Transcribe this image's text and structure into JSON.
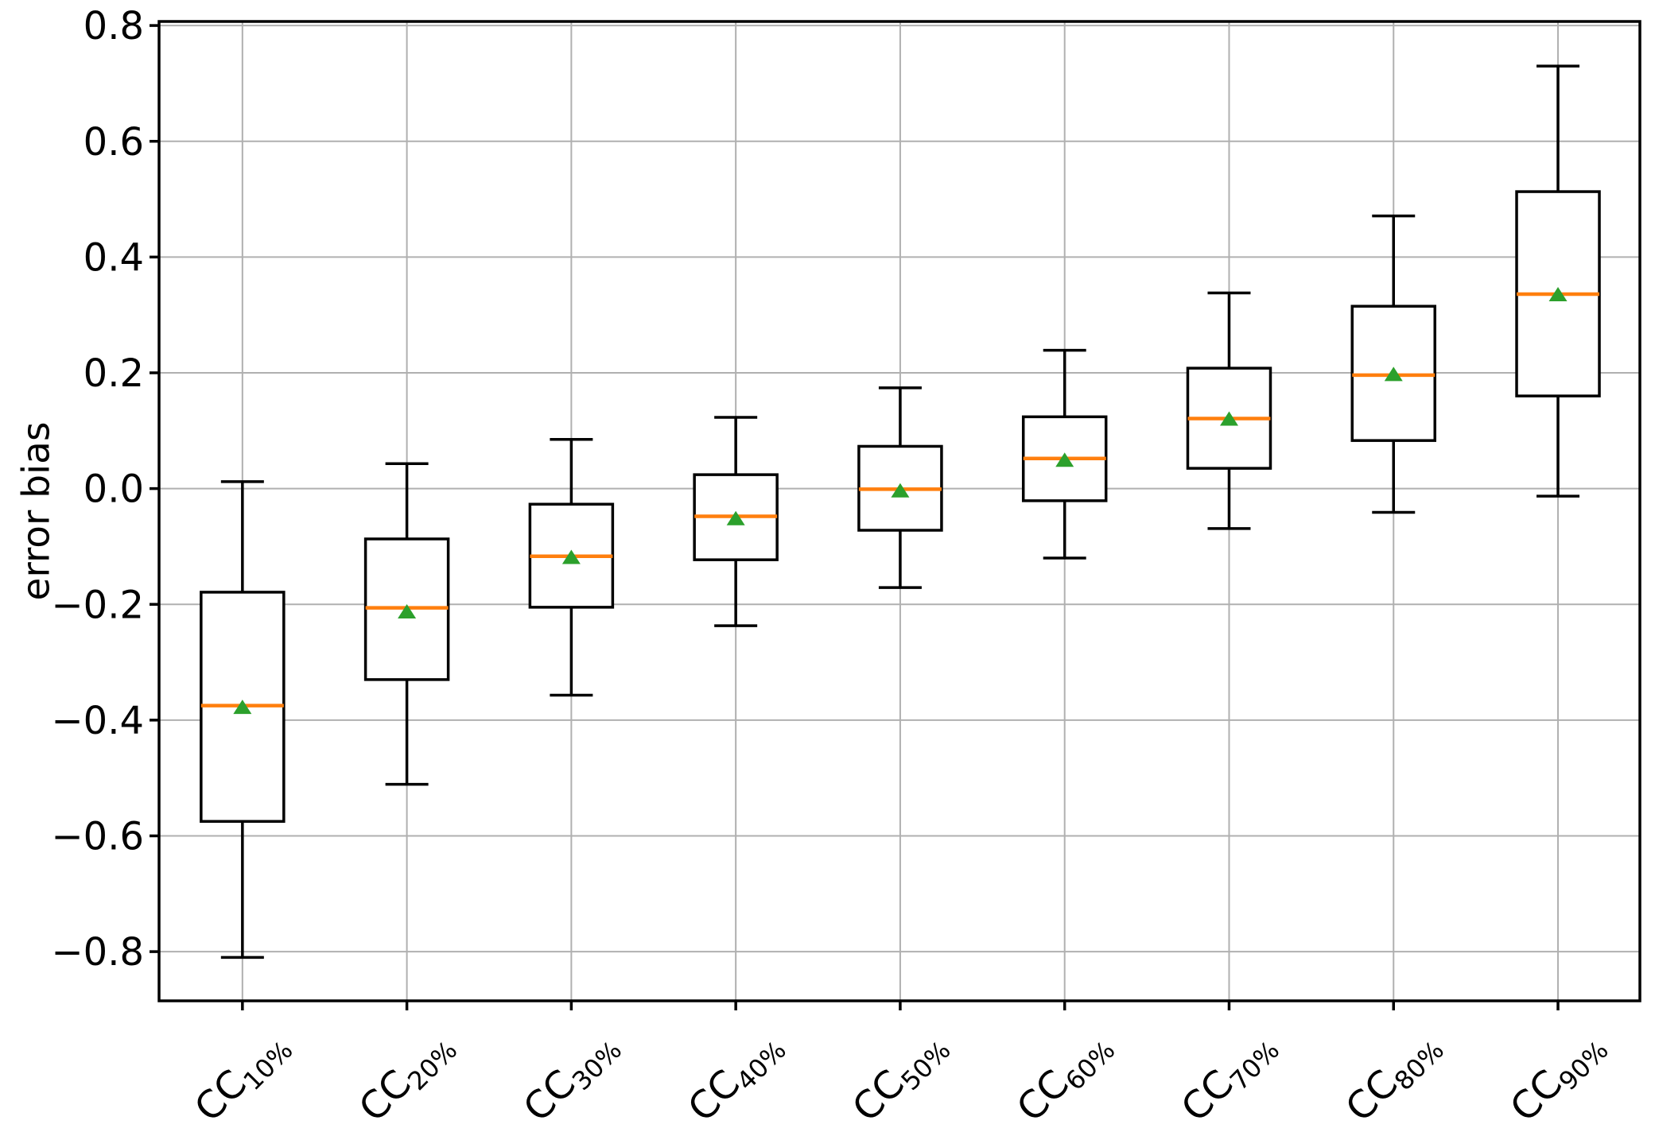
{
  "chart_data": {
    "type": "boxplot",
    "title": "",
    "ylabel": "error bias",
    "xlabel": "",
    "grid": true,
    "legend": false,
    "ylim": [
      -0.885,
      0.807
    ],
    "yticks": [
      0.8,
      0.6,
      0.4,
      0.2,
      0.0,
      -0.2,
      -0.4,
      -0.6,
      -0.8
    ],
    "categories": [
      {
        "base": "CC",
        "subscript": "10%"
      },
      {
        "base": "CC",
        "subscript": "20%"
      },
      {
        "base": "CC",
        "subscript": "30%"
      },
      {
        "base": "CC",
        "subscript": "40%"
      },
      {
        "base": "CC",
        "subscript": "50%"
      },
      {
        "base": "CC",
        "subscript": "60%"
      },
      {
        "base": "CC",
        "subscript": "70%"
      },
      {
        "base": "CC",
        "subscript": "80%"
      },
      {
        "base": "CC",
        "subscript": "90%"
      }
    ],
    "boxes": [
      {
        "label": "CC10%",
        "whislo": -0.81,
        "q1": -0.575,
        "med": -0.375,
        "q3": -0.179,
        "whishi": 0.012,
        "mean": -0.377
      },
      {
        "label": "CC20%",
        "whislo": -0.511,
        "q1": -0.33,
        "med": -0.206,
        "q3": -0.087,
        "whishi": 0.043,
        "mean": -0.212
      },
      {
        "label": "CC30%",
        "whislo": -0.357,
        "q1": -0.205,
        "med": -0.117,
        "q3": -0.027,
        "whishi": 0.085,
        "mean": -0.118
      },
      {
        "label": "CC40%",
        "whislo": -0.237,
        "q1": -0.123,
        "med": -0.048,
        "q3": 0.024,
        "whishi": 0.123,
        "mean": -0.051
      },
      {
        "label": "CC50%",
        "whislo": -0.171,
        "q1": -0.072,
        "med": -0.001,
        "q3": 0.073,
        "whishi": 0.174,
        "mean": -0.003
      },
      {
        "label": "CC60%",
        "whislo": -0.12,
        "q1": -0.021,
        "med": 0.052,
        "q3": 0.124,
        "whishi": 0.239,
        "mean": 0.05
      },
      {
        "label": "CC70%",
        "whislo": -0.069,
        "q1": 0.035,
        "med": 0.121,
        "q3": 0.208,
        "whishi": 0.338,
        "mean": 0.121
      },
      {
        "label": "CC80%",
        "whislo": -0.041,
        "q1": 0.083,
        "med": 0.196,
        "q3": 0.315,
        "whishi": 0.471,
        "mean": 0.198
      },
      {
        "label": "CC90%",
        "whislo": -0.013,
        "q1": 0.16,
        "med": 0.336,
        "q3": 0.513,
        "whishi": 0.73,
        "mean": 0.336
      }
    ],
    "mean_marker": "triangle-up",
    "colors": {
      "background": "#ffffff",
      "box_edge": "#000000",
      "median": "#ff7f0e",
      "mean_marker": "#2ca02c",
      "grid": "#b0b0b0",
      "spine": "#000000",
      "tick_label": "#000000"
    },
    "legend_position": "none"
  }
}
